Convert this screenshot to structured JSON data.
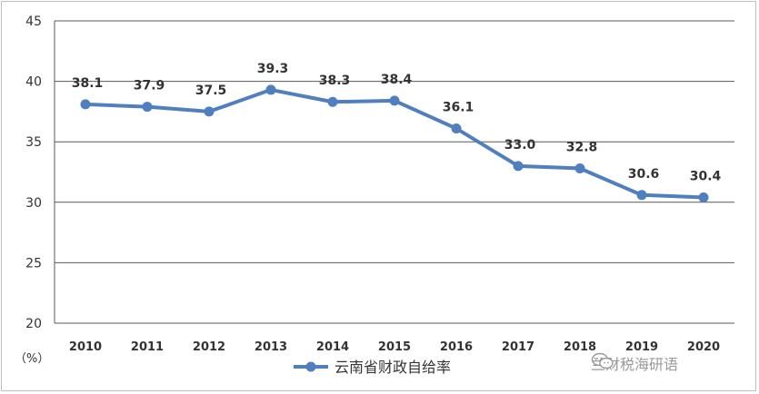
{
  "chart_data": {
    "type": "line",
    "categories": [
      "2010",
      "2011",
      "2012",
      "2013",
      "2014",
      "2015",
      "2016",
      "2017",
      "2018",
      "2019",
      "2020"
    ],
    "series": [
      {
        "name": "云南省财政自给率",
        "values": [
          38.1,
          37.9,
          37.5,
          39.3,
          38.3,
          38.4,
          36.1,
          33.0,
          32.8,
          30.6,
          30.4
        ],
        "labels": [
          "38.1",
          "37.9",
          "37.5",
          "39.3",
          "38.3",
          "38.4",
          "36.1",
          "33.0",
          "32.8",
          "30.6",
          "30.4"
        ]
      }
    ],
    "yticks": [
      "20",
      "25",
      "30",
      "35",
      "40",
      "45"
    ],
    "ylim": [
      20,
      45
    ],
    "unit": "（%）",
    "grid": true,
    "legend": "bottom",
    "colors": {
      "line": "#4f7fbf",
      "grid": "#595959",
      "axis_text": "#333333",
      "label_text": "#333333"
    }
  },
  "watermark": {
    "text": "兰财税海研语",
    "icon": "wechat-icon"
  }
}
